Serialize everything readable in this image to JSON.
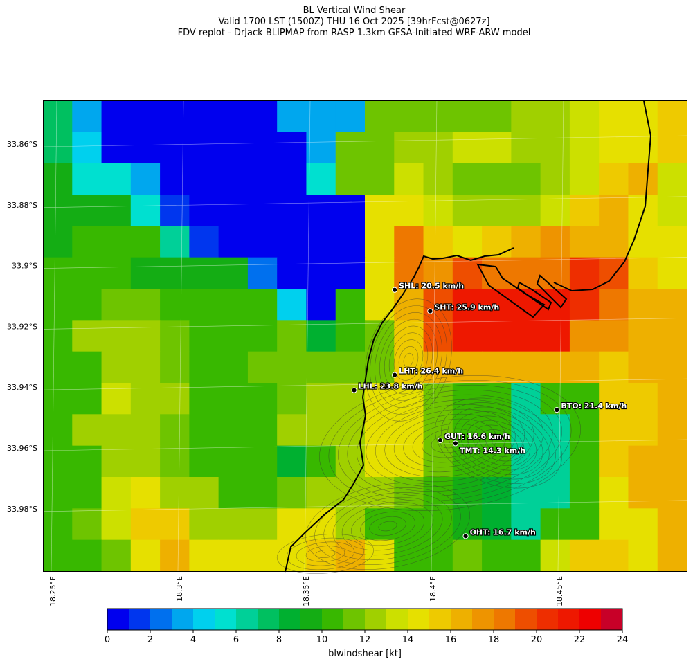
{
  "title": {
    "line1": "BL Vertical Wind Shear",
    "line2": "Valid 1700 LST (1500Z) THU 16 Oct 2025 [39hrFcst@0627z]",
    "line3": "FDV replot - DrJack BLIPMAP from RASP 1.3km GFSA-Initiated WRF-ARW model"
  },
  "map": {
    "lat_labels": [
      "33.86°S",
      "33.88°S",
      "33.9°S",
      "33.92°S",
      "33.94°S",
      "33.96°S",
      "33.98°S"
    ],
    "lon_labels": [
      "18.25°E",
      "18.3°E",
      "18.35°E",
      "18.4°E",
      "18.45°E"
    ],
    "grid_kt": [
      [
        7,
        3,
        0,
        0,
        0,
        0,
        0,
        0,
        3,
        3,
        3,
        11,
        11,
        11,
        11,
        11,
        12,
        12,
        13,
        14,
        14,
        15
      ],
      [
        7,
        4,
        0,
        0,
        0,
        0,
        0,
        0,
        0,
        3,
        11,
        11,
        12,
        12,
        13,
        13,
        12,
        12,
        13,
        14,
        14,
        15
      ],
      [
        9,
        5,
        5,
        3,
        0,
        0,
        0,
        0,
        0,
        5,
        11,
        11,
        13,
        12,
        11,
        11,
        11,
        12,
        13,
        15,
        16,
        13
      ],
      [
        9,
        9,
        9,
        5,
        1,
        0,
        0,
        0,
        0,
        0,
        0,
        14,
        14,
        13,
        12,
        12,
        12,
        13,
        15,
        16,
        14,
        13
      ],
      [
        9,
        10,
        10,
        10,
        6,
        1,
        0,
        0,
        0,
        0,
        0,
        14,
        18,
        15,
        14,
        15,
        16,
        17,
        16,
        16,
        14,
        14
      ],
      [
        10,
        10,
        10,
        9,
        9,
        9,
        9,
        2,
        0,
        0,
        0,
        14,
        18,
        17,
        19,
        18,
        18,
        18,
        20,
        19,
        15,
        14
      ],
      [
        10,
        10,
        11,
        11,
        10,
        10,
        10,
        10,
        4,
        0,
        10,
        14,
        16,
        19,
        21,
        21,
        21,
        21,
        20,
        18,
        16,
        16
      ],
      [
        10,
        12,
        12,
        12,
        11,
        10,
        10,
        10,
        11,
        8,
        10,
        11,
        15,
        19,
        21,
        21,
        21,
        21,
        17,
        17,
        16,
        16
      ],
      [
        10,
        10,
        12,
        12,
        11,
        10,
        10,
        11,
        11,
        11,
        11,
        11,
        15,
        16,
        16,
        16,
        16,
        16,
        16,
        15,
        16,
        16
      ],
      [
        10,
        10,
        13,
        12,
        12,
        10,
        10,
        10,
        11,
        12,
        12,
        14,
        14,
        11,
        10,
        10,
        6,
        10,
        10,
        15,
        15,
        16
      ],
      [
        10,
        12,
        12,
        12,
        11,
        10,
        10,
        10,
        12,
        12,
        12,
        14,
        14,
        11,
        10,
        10,
        6,
        6,
        10,
        15,
        15,
        16
      ],
      [
        10,
        10,
        12,
        12,
        11,
        10,
        10,
        10,
        8,
        10,
        12,
        14,
        14,
        11,
        10,
        10,
        6,
        6,
        10,
        15,
        16,
        16
      ],
      [
        10,
        10,
        13,
        14,
        12,
        12,
        10,
        10,
        11,
        12,
        12,
        12,
        11,
        10,
        9,
        8,
        6,
        6,
        10,
        14,
        16,
        16
      ],
      [
        10,
        11,
        13,
        15,
        15,
        12,
        12,
        12,
        14,
        14,
        12,
        10,
        10,
        10,
        9,
        8,
        6,
        10,
        10,
        14,
        14,
        16
      ],
      [
        10,
        10,
        11,
        14,
        16,
        14,
        14,
        14,
        14,
        15,
        16,
        14,
        10,
        10,
        11,
        10,
        10,
        13,
        15,
        15,
        14,
        16
      ]
    ],
    "stations": [
      {
        "id": "SHL",
        "label": "SHL: 20.5 km/h",
        "lon": 18.385,
        "lat": -33.908
      },
      {
        "id": "SHT",
        "label": "SHT: 25.9 km/h",
        "lon": 18.399,
        "lat": -33.915
      },
      {
        "id": "LHT",
        "label": "LHT: 26.4 km/h",
        "lon": 18.385,
        "lat": -33.936
      },
      {
        "id": "LHL",
        "label": "LHL: 23.8 km/h",
        "lon": 18.369,
        "lat": -33.941
      },
      {
        "id": "BTO",
        "label": "BTO: 21.4 km/h",
        "lon": 18.449,
        "lat": -33.9475
      },
      {
        "id": "GUT",
        "label": "GUT: 16.6 km/h",
        "lon": 18.403,
        "lat": -33.9575
      },
      {
        "id": "TMT",
        "label": "TMT: 14.3 km/h",
        "lon": 18.409,
        "lat": -33.9585
      },
      {
        "id": "OHT",
        "label": "OHT: 16.7 km/h",
        "lon": 18.413,
        "lat": -33.989
      }
    ]
  },
  "colorbar": {
    "label": "blwindshear [kt]",
    "ticks": [
      "0",
      "2",
      "4",
      "6",
      "8",
      "10",
      "12",
      "14",
      "16",
      "18",
      "20",
      "22",
      "24"
    ],
    "colors": [
      "#0000ee",
      "#0036ee",
      "#0070ee",
      "#00a7ee",
      "#00d0ee",
      "#00e0d0",
      "#00d098",
      "#00c060",
      "#00b030",
      "#14ad14",
      "#38b800",
      "#6ec400",
      "#a0d000",
      "#cce000",
      "#e6e000",
      "#eeca00",
      "#eeb000",
      "#ee9400",
      "#ee7800",
      "#ee4e00",
      "#ee2e00",
      "#ee1800",
      "#ee0000",
      "#c80028"
    ]
  }
}
